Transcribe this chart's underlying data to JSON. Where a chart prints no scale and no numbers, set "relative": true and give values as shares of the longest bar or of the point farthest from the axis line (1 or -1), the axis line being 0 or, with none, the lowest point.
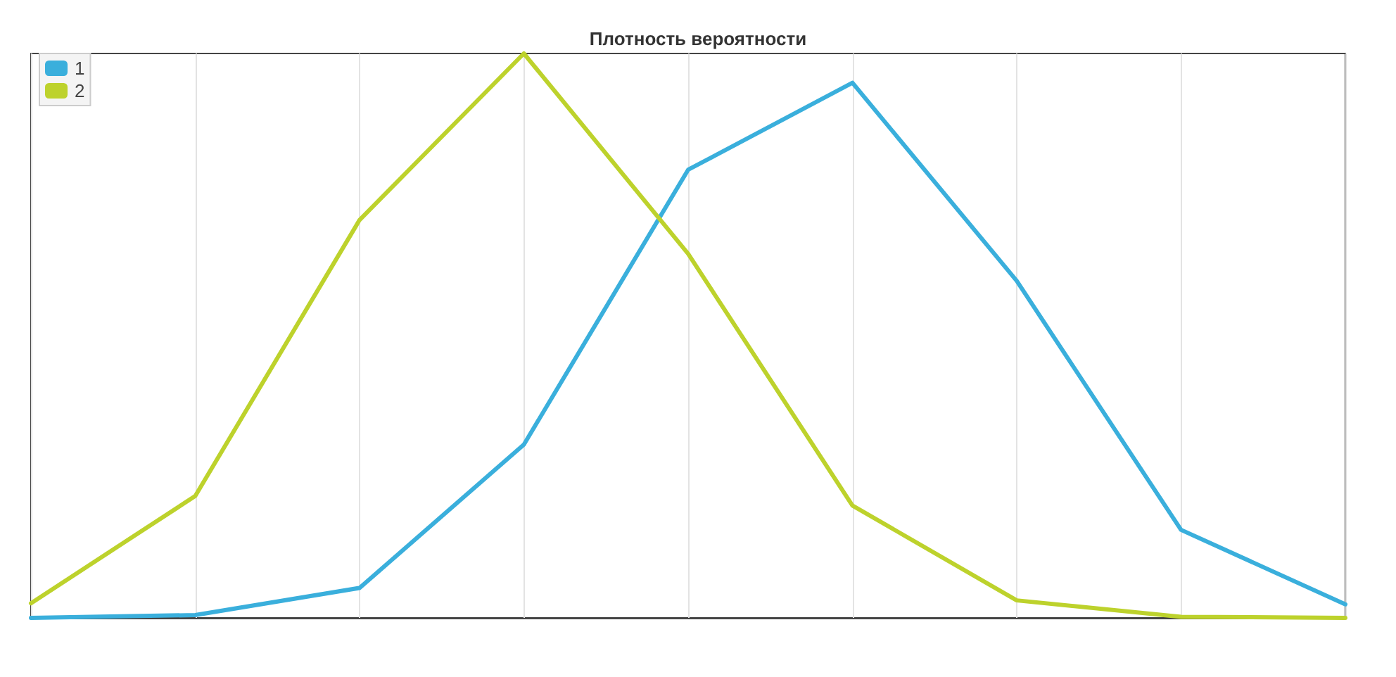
{
  "chart_data": {
    "type": "line",
    "title": "Плотность вероятности",
    "relative": true,
    "categories": [
      null,
      null,
      null,
      null,
      null,
      null,
      null,
      null,
      null
    ],
    "series": [
      {
        "name": "1",
        "color": "#3aafdc",
        "values": [
          0,
          0.005,
          0.053,
          0.307,
          0.794,
          0.948,
          0.597,
          0.156,
          0.024
        ]
      },
      {
        "name": "2",
        "color": "#bdd22c",
        "values": [
          0.026,
          0.216,
          0.705,
          1.0,
          0.645,
          0.199,
          0.031,
          0.002,
          0
        ]
      }
    ],
    "grid": "x",
    "legend": "top left",
    "marker": "none",
    "line_style": "solid"
  }
}
